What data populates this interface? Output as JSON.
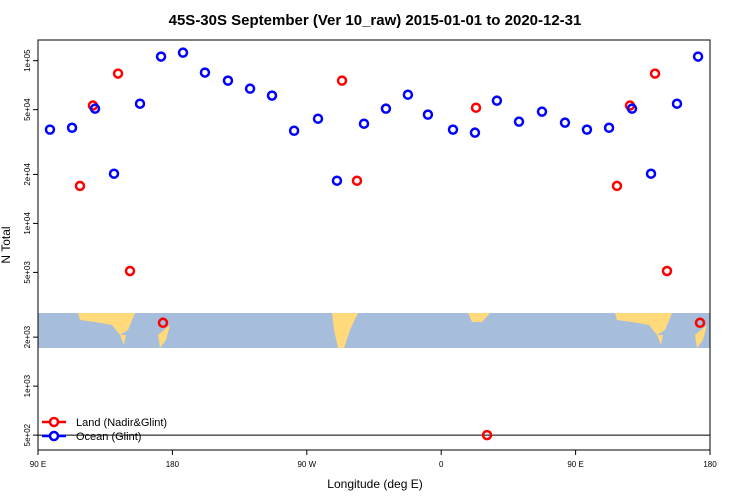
{
  "chart_data": {
    "type": "scatter",
    "title": "45S-30S September (Ver 10_raw)   2015-01-01 to 2020-12-31",
    "x_label": "Longitude (deg E)",
    "y_label": "N Total",
    "log_y": true,
    "xlim": [
      90,
      540
    ],
    "ylim": [
      405,
      134000
    ],
    "xticks": [
      {
        "value": 90,
        "label": "90 E"
      },
      {
        "value": 180,
        "label": "180"
      },
      {
        "value": 270,
        "label": "90 W"
      },
      {
        "value": 360,
        "label": "0"
      },
      {
        "value": 450,
        "label": "90 E"
      },
      {
        "value": 540,
        "label": "180"
      }
    ],
    "yticks": [
      {
        "value": 500,
        "label": "5e+02"
      },
      {
        "value": 1000,
        "label": "1e+03"
      },
      {
        "value": 2000,
        "label": "2e+03"
      },
      {
        "value": 5000,
        "label": "5e+03"
      },
      {
        "value": 10000,
        "label": "1e+04"
      },
      {
        "value": 20000,
        "label": "2e+04"
      },
      {
        "value": 50000,
        "label": "5e+04"
      },
      {
        "value": 100000,
        "label": "1e+05"
      }
    ],
    "reference_line": 500,
    "legend": "bottom-left",
    "series": [
      {
        "name": "Land (Nadir&Glint)",
        "color": "#ff0000",
        "x": [
          118.1,
          126.8,
          143.6,
          151.6,
          173.7,
          293.6,
          303.6,
          383.3,
          390.7,
          477.7,
          486.4,
          503.2,
          511.2,
          533.3
        ],
        "values": [
          17000,
          53000,
          83300,
          5100,
          2450,
          75400,
          18300,
          51400,
          500,
          17000,
          53000,
          83300,
          5100,
          2450
        ]
      },
      {
        "name": "Ocean (Glint)",
        "color": "#0000ff",
        "x": [
          98,
          112.8,
          128.2,
          140.9,
          158.3,
          172.4,
          187.1,
          201.8,
          217.2,
          232,
          246.7,
          261.5,
          277.5,
          290.2,
          308.3,
          323,
          337.7,
          351.1,
          367.9,
          382.6,
          397.3,
          412.1,
          427.5,
          442.9,
          457.6,
          472.4,
          487.8,
          500.5,
          517.9,
          532
        ],
        "values": [
          37700,
          38700,
          50700,
          20200,
          54400,
          106000,
          112000,
          84500,
          75400,
          67300,
          61000,
          37100,
          44000,
          18300,
          41000,
          50700,
          61800,
          46600,
          37700,
          36100,
          56800,
          42200,
          48600,
          41600,
          37700,
          38700,
          50700,
          20200,
          54400,
          106000
        ]
      }
    ]
  }
}
